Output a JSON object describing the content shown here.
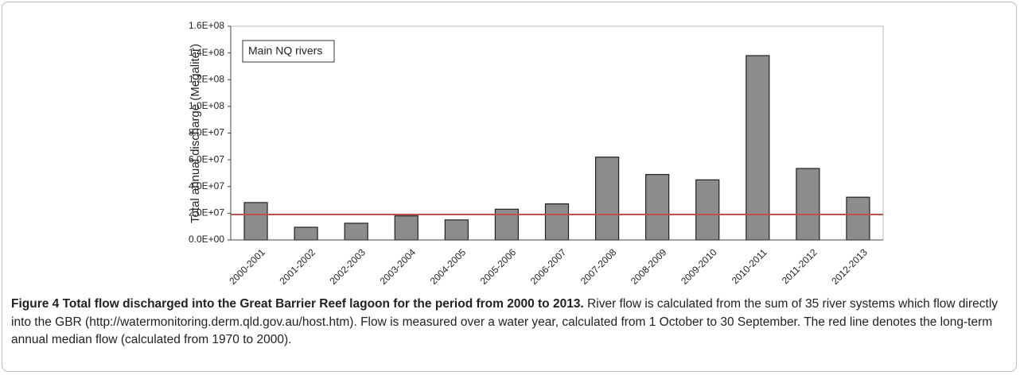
{
  "chart_data": {
    "type": "bar",
    "y_label": "Total annual discharge (Megaliter)",
    "annotation": "Main NQ rivers",
    "categories": [
      "2000-2001",
      "2001-2002",
      "2002-2003",
      "2003-2004",
      "2004-2005",
      "2005-2006",
      "2006-2007",
      "2007-2008",
      "2008-2009",
      "2009-2010",
      "2010-2011",
      "2011-2012",
      "2012-2013"
    ],
    "values": [
      28000000,
      9500000,
      12500000,
      18000000,
      15000000,
      23000000,
      27000000,
      62000000,
      49000000,
      45000000,
      138000000,
      53500000,
      32000000
    ],
    "color": "#8c8c8c",
    "reference_line": {
      "value": 19000000,
      "color": "#c0504d"
    },
    "ylim": [
      0,
      160000000
    ],
    "yticks": [
      {
        "value": 0,
        "label": "0.0E+00"
      },
      {
        "value": 20000000,
        "label": "2.0E+07"
      },
      {
        "value": 40000000,
        "label": "4.0E+07"
      },
      {
        "value": 60000000,
        "label": "6.0E+07"
      },
      {
        "value": 80000000,
        "label": "8.0E+07"
      },
      {
        "value": 100000000,
        "label": "1.0E+08"
      },
      {
        "value": 120000000,
        "label": "1.2E+08"
      },
      {
        "value": 140000000,
        "label": "1.4E+08"
      },
      {
        "value": 160000000,
        "label": "1.6E+08"
      }
    ],
    "grid": false
  },
  "caption": {
    "title": "Figure 4 Total flow discharged into the Great Barrier Reef lagoon for the period from 2000 to 2013.",
    "text": "River flow is calculated from the sum of 35 river systems which flow directly into the GBR (http://watermonitoring.derm.qld.gov.au/host.htm). Flow is measured over a water year, calculated from 1 October to 30 September. The red line denotes the long-term annual median flow (calculated from 1970 to 2000)."
  }
}
